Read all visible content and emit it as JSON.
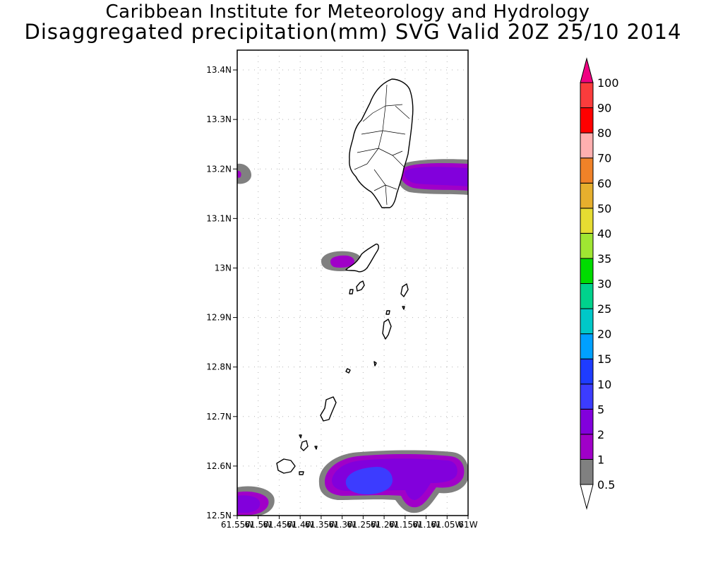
{
  "header": {
    "title": "Caribbean Institute for Meteorology and Hydrology",
    "subtitle": "Disaggregated precipitation(mm) SVG Valid 20Z 25/10 2014"
  },
  "map": {
    "lat_labels": [
      "12.5N",
      "12.6N",
      "12.7N",
      "12.8N",
      "12.9N",
      "13N",
      "13.1N",
      "13.2N",
      "13.3N",
      "13.4N"
    ],
    "lat_values": [
      12.5,
      12.6,
      12.7,
      12.8,
      12.9,
      13.0,
      13.1,
      13.2,
      13.3,
      13.4
    ],
    "lon_labels": [
      "61.55W",
      "61.5W",
      "61.45W",
      "61.4W",
      "61.35W",
      "61.3W",
      "61.25W",
      "61.2W",
      "61.15W",
      "61.1W",
      "61.05W",
      "61W"
    ],
    "lon_values": [
      -61.55,
      -61.5,
      -61.45,
      -61.4,
      -61.35,
      -61.3,
      -61.25,
      -61.2,
      -61.15,
      -61.1,
      -61.05,
      -61.0
    ],
    "lon_range": [
      -61.55,
      -61.0
    ],
    "lat_range": [
      12.5,
      13.44
    ],
    "grid": true
  },
  "colorbar": {
    "levels": [
      "0.5",
      "1",
      "2",
      "5",
      "10",
      "15",
      "20",
      "25",
      "30",
      "35",
      "40",
      "50",
      "60",
      "70",
      "80",
      "90",
      "100"
    ],
    "colors": [
      "#808080",
      "#a000c8",
      "#8200dc",
      "#3c3cff",
      "#1e3cff",
      "#00a0ff",
      "#00c8c8",
      "#00d28c",
      "#00dc00",
      "#a0e632",
      "#e6dc32",
      "#e6af2d",
      "#f08228",
      "#ffafaf",
      "#ff0000",
      "#fa3c3c",
      "#f00082"
    ]
  }
}
